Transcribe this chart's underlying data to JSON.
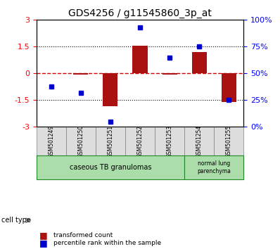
{
  "title": "GDS4256 / g11545860_3p_at",
  "samples": [
    "GSM501249",
    "GSM501250",
    "GSM501251",
    "GSM501252",
    "GSM501253",
    "GSM501254",
    "GSM501255"
  ],
  "transformed_count": [
    0.0,
    -0.05,
    -1.85,
    1.55,
    -0.05,
    1.2,
    -1.6
  ],
  "percentile_rank": [
    38,
    32,
    5,
    93,
    65,
    75,
    25
  ],
  "ylim_left": [
    -3,
    3
  ],
  "ylim_right": [
    0,
    100
  ],
  "yticks_left": [
    -3,
    -1.5,
    0,
    1.5,
    3
  ],
  "yticks_right": [
    0,
    25,
    50,
    75,
    100
  ],
  "ytick_labels_left": [
    "-3",
    "-1.5",
    "0",
    "1.5",
    "3"
  ],
  "ytick_labels_right": [
    "0%",
    "25%",
    "50%",
    "75%",
    "100%"
  ],
  "bar_color": "#aa1111",
  "dot_color": "#0000cc",
  "hline_color": "#cc0000",
  "grid_color": "#000000",
  "cell_types": [
    {
      "label": "caseous TB granulomas",
      "samples": [
        0,
        1,
        2,
        3,
        4
      ],
      "color": "#aaddaa"
    },
    {
      "label": "normal lung\nparenchyma",
      "samples": [
        5,
        6
      ],
      "color": "#aaddaa"
    }
  ],
  "cell_type_label": "cell type",
  "legend_bar": "transformed count",
  "legend_dot": "percentile rank within the sample",
  "bar_width": 0.5
}
